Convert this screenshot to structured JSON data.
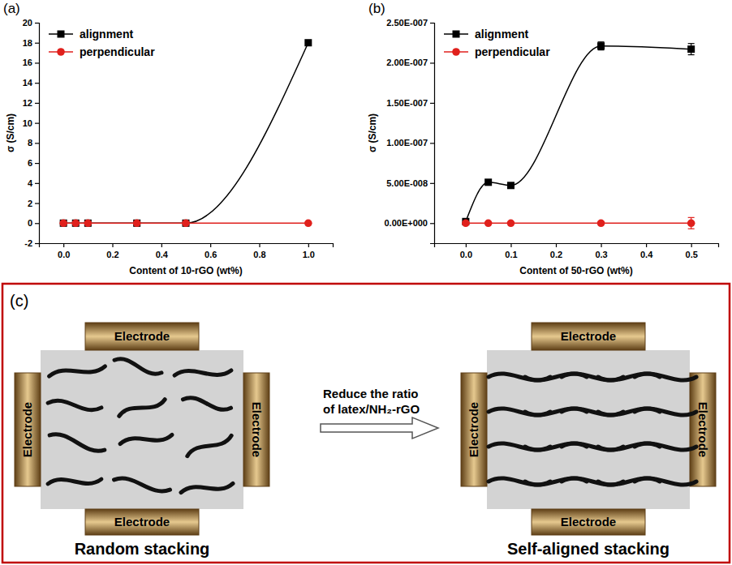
{
  "chart_data": [
    {
      "type": "line",
      "panel_label": "(a)",
      "x_label": "Content of 10-rGO (wt%)",
      "y_label": "σ (S/cm)",
      "x": [
        0,
        0.05,
        0.1,
        0.3,
        0.5,
        1.0
      ],
      "series": [
        {
          "name": "alignment",
          "color": "#000000",
          "marker": "square",
          "values": [
            0,
            0,
            0,
            0,
            0,
            18
          ]
        },
        {
          "name": "perpendicular",
          "color": "#e0201c",
          "marker": "circle",
          "values": [
            0,
            0,
            0,
            0,
            0,
            0
          ]
        }
      ],
      "xlim": [
        -0.1,
        1.1
      ],
      "xticks": [
        {
          "value": 0,
          "label": "0.0"
        },
        0.2,
        0.4,
        0.6,
        0.8,
        {
          "value": 1,
          "label": "1.0"
        }
      ],
      "ylim": [
        -2,
        20
      ],
      "yticks": [
        -2,
        0,
        2,
        4,
        6,
        8,
        10,
        12,
        14,
        16,
        18,
        20
      ],
      "legend": "top-left",
      "grid": false
    },
    {
      "type": "line",
      "panel_label": "(b)",
      "x_label": "Content of 50-rGO (wt%)",
      "y_label": "σ (S/cm)",
      "x": [
        0,
        0.05,
        0.1,
        0.3,
        0.5
      ],
      "series": [
        {
          "name": "alignment",
          "color": "#000000",
          "marker": "square",
          "values": [
            2e-09,
            5.1e-08,
            4.7e-08,
            2.21e-07,
            2.17e-07
          ],
          "errors": [
            2e-09,
            3e-09,
            1e-09,
            5e-09,
            7e-09
          ]
        },
        {
          "name": "perpendicular",
          "color": "#e0201c",
          "marker": "circle",
          "values": [
            0,
            0,
            0,
            0,
            0
          ],
          "errors": [
            2e-09,
            1e-09,
            1e-09,
            2e-09,
            7e-09
          ]
        }
      ],
      "xlim": [
        -0.07,
        0.56
      ],
      "xticks": [
        {
          "value": 0,
          "label": "0.0"
        },
        0.1,
        0.2,
        0.3,
        0.4,
        0.5
      ],
      "ylim": [
        -2.5e-08,
        2.5e-07
      ],
      "yticks": [
        {
          "value": 0,
          "label": "0.00E+000"
        },
        {
          "value": 5e-08,
          "label": "5.00E-008"
        },
        {
          "value": 1e-07,
          "label": "1.00E-007"
        },
        {
          "value": 1.5e-07,
          "label": "1.50E-007"
        },
        {
          "value": 2e-07,
          "label": "2.00E-007"
        },
        {
          "value": 2.5e-07,
          "label": "2.50E-007"
        }
      ],
      "legend": "top-left",
      "grid": false
    }
  ],
  "diagram": {
    "panel_label": "(c)",
    "arrow_label": "Reduce the ratio of latex/NH₂-rGO",
    "left": {
      "caption": "Random stacking",
      "electrodes": [
        "Electrode",
        "Electrode",
        "Electrode",
        "Electrode"
      ]
    },
    "right": {
      "caption": "Self-aligned stacking",
      "electrodes": [
        "Electrode",
        "Electrode",
        "Electrode",
        "Electrode"
      ]
    }
  }
}
